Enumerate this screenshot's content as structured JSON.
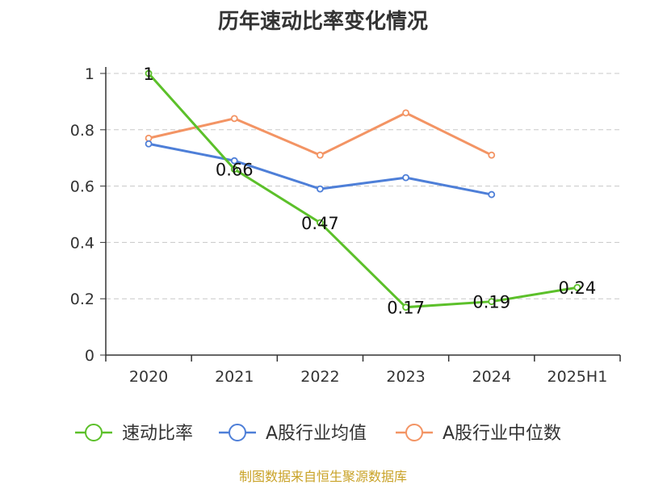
{
  "chart_data": {
    "type": "line",
    "title": "历年速动比率变化情况",
    "categories": [
      "2020",
      "2021",
      "2022",
      "2023",
      "2024",
      "2025H1"
    ],
    "ylim": [
      0,
      1
    ],
    "yticks": [
      0,
      0.2,
      0.4,
      0.6,
      0.8,
      1
    ],
    "ytick_labels": [
      "0",
      "0.2",
      "0.4",
      "0.6",
      "0.8",
      "1"
    ],
    "grid": true,
    "legend_position": "bottom",
    "series": [
      {
        "name": "速动比率",
        "color": "#5cc02a",
        "values": [
          1.0,
          0.66,
          0.47,
          0.17,
          0.19,
          0.24
        ],
        "labels": [
          "1",
          "0.66",
          "0.47",
          "0.17",
          "0.19",
          "0.24"
        ]
      },
      {
        "name": "A股行业均值",
        "color": "#4e7fd8",
        "values": [
          0.75,
          0.69,
          0.59,
          0.63,
          0.57,
          null
        ]
      },
      {
        "name": "A股行业中位数",
        "color": "#f39464",
        "values": [
          0.77,
          0.84,
          0.71,
          0.86,
          0.71,
          null
        ]
      }
    ],
    "source": "制图数据来自恒生聚源数据库"
  }
}
